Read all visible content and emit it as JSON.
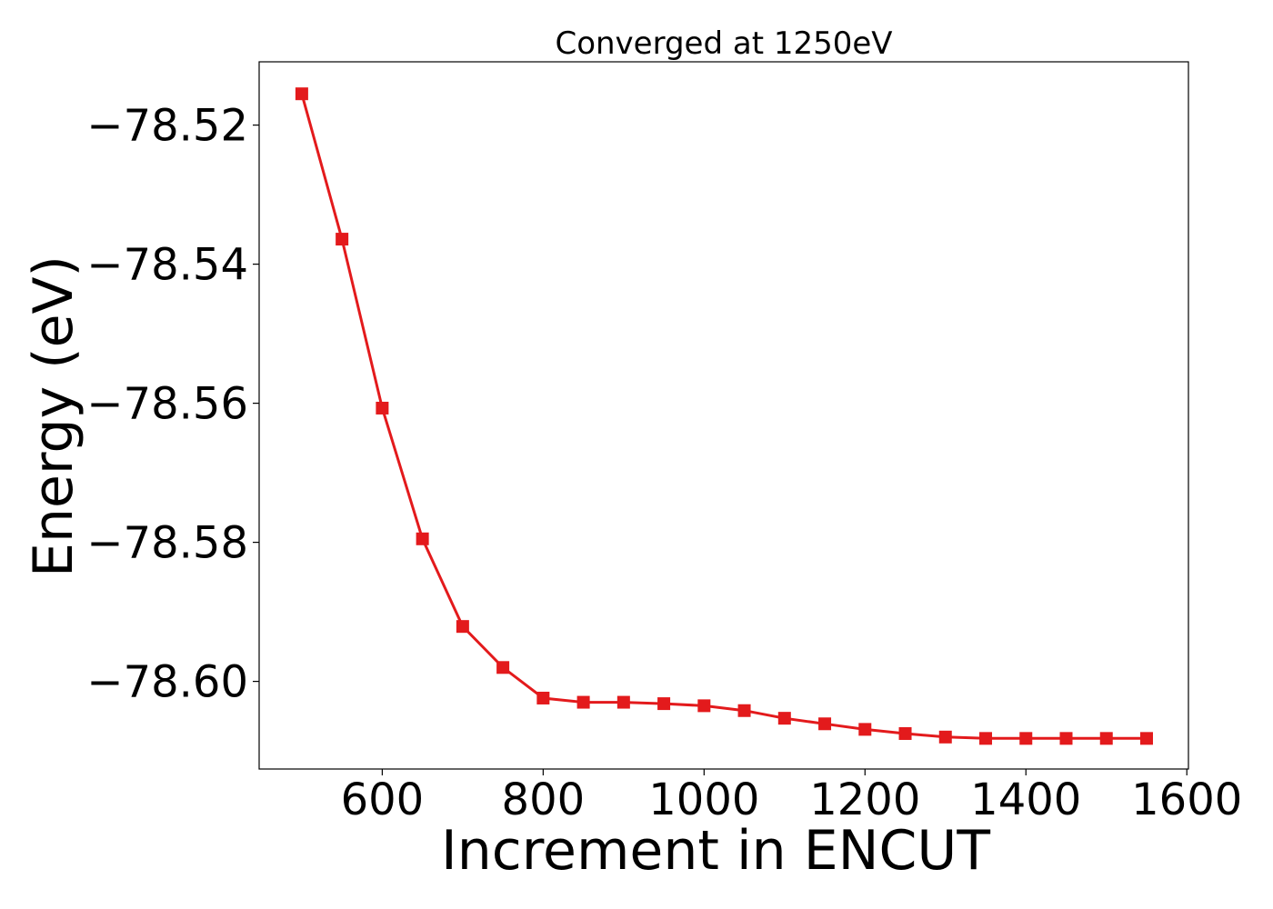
{
  "chart_data": {
    "type": "line",
    "title": "Converged at 1250eV",
    "xlabel": "Increment in ENCUT",
    "ylabel": "Energy (eV)",
    "xlim": [
      447,
      1602
    ],
    "ylim": [
      -78.6126,
      -78.5109
    ],
    "x_ticks": [
      600,
      800,
      1000,
      1200,
      1400,
      1600
    ],
    "y_ticks": [
      -78.52,
      -78.54,
      -78.56,
      -78.58,
      -78.6
    ],
    "x_tick_labels": [
      "600",
      "800",
      "1000",
      "1200",
      "1400",
      "1600"
    ],
    "y_tick_labels": [
      "−78.52",
      "−78.54",
      "−78.56",
      "−78.58",
      "−78.60"
    ],
    "grid": false,
    "color": "#e31a1c",
    "marker": "square",
    "series": [
      {
        "x": [
          500,
          550,
          600,
          650,
          700,
          750,
          800,
          850,
          900,
          950,
          1000,
          1050,
          1100,
          1150,
          1200,
          1250,
          1300,
          1350,
          1400,
          1450,
          1500,
          1550
        ],
        "y": [
          -78.5155,
          -78.5364,
          -78.5607,
          -78.5795,
          -78.5921,
          -78.598,
          -78.6024,
          -78.603,
          -78.603,
          -78.6032,
          -78.6035,
          -78.6042,
          -78.6053,
          -78.6061,
          -78.6069,
          -78.6075,
          -78.608,
          -78.6082,
          -78.6082,
          -78.6082,
          -78.6082,
          -78.6082
        ]
      }
    ]
  }
}
